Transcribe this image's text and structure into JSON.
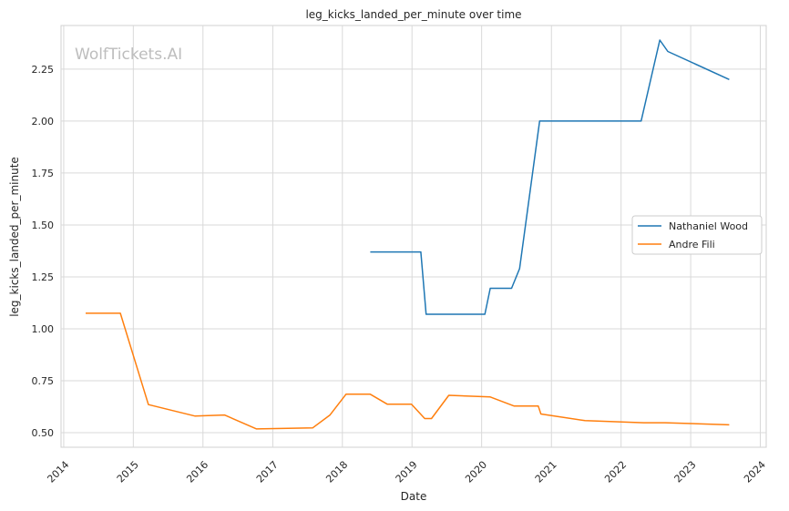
{
  "chart_data": {
    "type": "line",
    "title": "leg_kicks_landed_per_minute over time",
    "xlabel": "Date",
    "ylabel": "leg_kicks_landed_per_minute",
    "watermark": "WolfTickets.AI",
    "x_ticks": [
      "2014",
      "2015",
      "2016",
      "2017",
      "2018",
      "2019",
      "2020",
      "2021",
      "2022",
      "2023",
      "2024"
    ],
    "y_ticks": [
      "0.50",
      "0.75",
      "1.00",
      "1.25",
      "1.50",
      "1.75",
      "2.00",
      "2.25"
    ],
    "xlim": [
      "2013-12-18",
      "2024-02-01"
    ],
    "ylim": [
      0.43,
      2.46
    ],
    "grid": true,
    "legend_position": "center-right",
    "series": [
      {
        "name": "Nathaniel Wood",
        "color": "#1f77b4",
        "points": [
          [
            "2018-05-27",
            1.37
          ],
          [
            "2019-02-16",
            1.37
          ],
          [
            "2019-03-16",
            1.07
          ],
          [
            "2020-01-18",
            1.07
          ],
          [
            "2020-02-15",
            1.195
          ],
          [
            "2020-06-06",
            1.195
          ],
          [
            "2020-07-18",
            1.29
          ],
          [
            "2020-10-31",
            2.0
          ],
          [
            "2022-04-16",
            2.0
          ],
          [
            "2022-07-23",
            2.39
          ],
          [
            "2022-09-03",
            2.335
          ],
          [
            "2023-07-22",
            2.2
          ]
        ]
      },
      {
        "name": "Andre Fili",
        "color": "#ff7f0e",
        "points": [
          [
            "2014-04-26",
            1.075
          ],
          [
            "2014-10-25",
            1.075
          ],
          [
            "2015-03-21",
            0.635
          ],
          [
            "2015-11-21",
            0.58
          ],
          [
            "2016-04-23",
            0.585
          ],
          [
            "2016-10-08",
            0.518
          ],
          [
            "2017-07-29",
            0.523
          ],
          [
            "2017-10-28",
            0.585
          ],
          [
            "2018-01-20",
            0.685
          ],
          [
            "2018-05-27",
            0.685
          ],
          [
            "2018-08-25",
            0.637
          ],
          [
            "2018-12-29",
            0.637
          ],
          [
            "2019-03-09",
            0.568
          ],
          [
            "2019-04-13",
            0.568
          ],
          [
            "2019-07-13",
            0.68
          ],
          [
            "2020-02-15",
            0.672
          ],
          [
            "2020-06-20",
            0.628
          ],
          [
            "2020-10-24",
            0.628
          ],
          [
            "2020-11-07",
            0.59
          ],
          [
            "2021-06-26",
            0.558
          ],
          [
            "2022-04-30",
            0.548
          ],
          [
            "2022-08-20",
            0.548
          ],
          [
            "2023-07-22",
            0.538
          ]
        ]
      }
    ]
  }
}
